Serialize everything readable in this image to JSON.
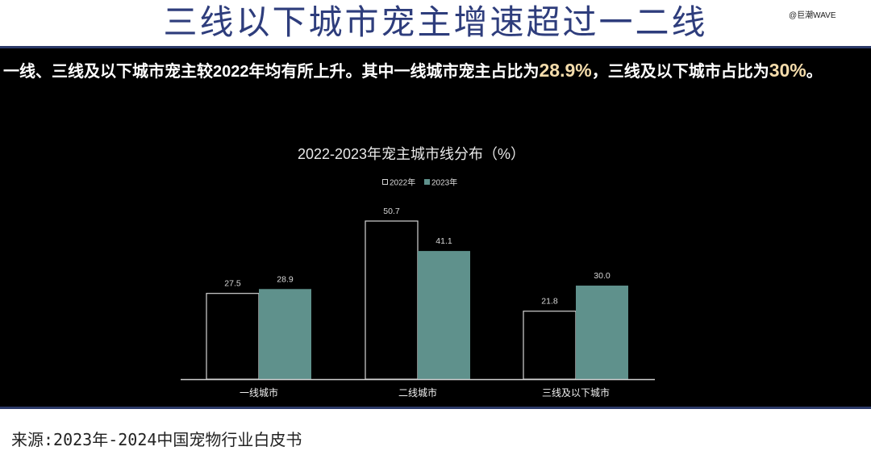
{
  "watermark": "@巨潮WAVE",
  "title": "三线以下城市宠主增速超过一二线",
  "summary": {
    "lead": "一线、三线及以下城市宠主较2022年均有所上升。其中一线城市宠主占比为",
    "value_tier1": "28.9%",
    "middle": "，三线及以下城市占比为",
    "value_tier3": "30%",
    "end": "。"
  },
  "source": "来源:2023年-2024中国宠物行业白皮书",
  "colors": {
    "title": "#2e3d7c",
    "divider": "#2b3968",
    "panel": "#000000",
    "highlight": "#f4dcab",
    "axis": "#cfcfcf"
  },
  "chart_data": {
    "type": "bar",
    "title": "2022-2023年宠主城市线分布（%）",
    "categories": [
      "一线城市",
      "二线城市",
      "三线及以下城市"
    ],
    "series": [
      {
        "name": "2022年",
        "values": [
          27.5,
          50.7,
          21.8
        ],
        "color": "#d4d4d4",
        "fill": "#000000"
      },
      {
        "name": "2023年",
        "values": [
          28.9,
          41.1,
          30.0
        ],
        "color": "#5f918c",
        "fill": "#5f918c"
      }
    ],
    "data_labels": true,
    "legend": "top-center",
    "grid": false
  }
}
